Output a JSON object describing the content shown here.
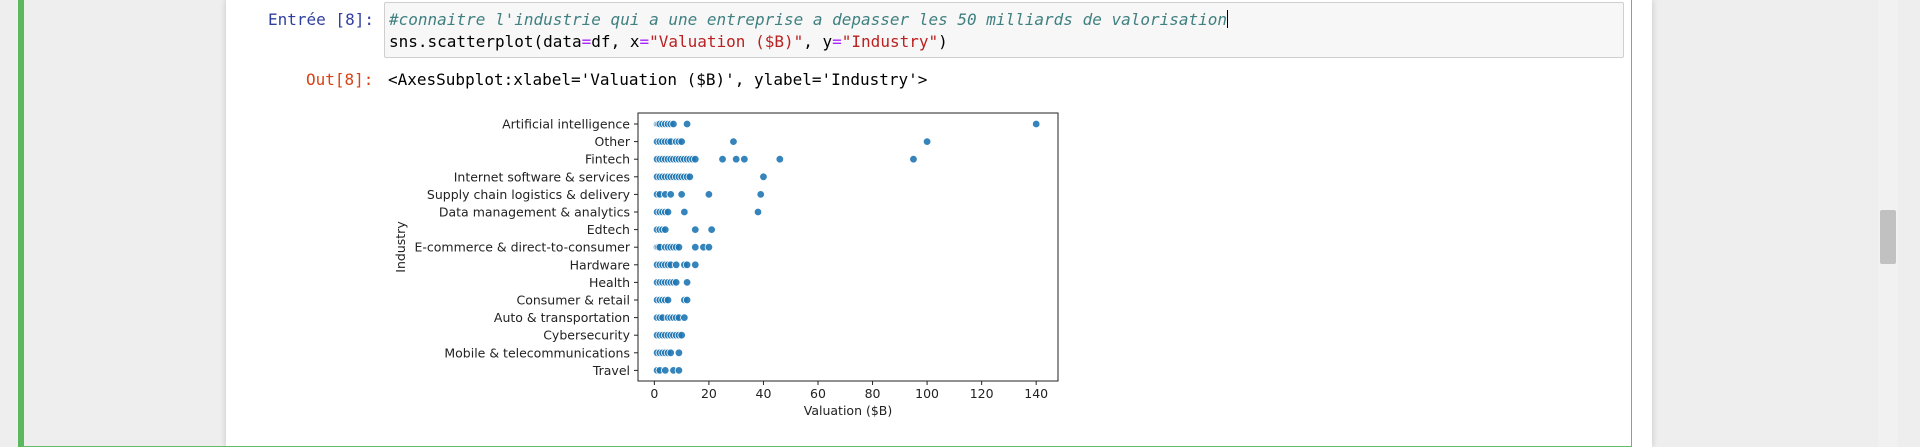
{
  "cell": {
    "in_prompt": "Entrée [8]:",
    "out_prompt": "Out[8]:",
    "code_line1_comment": "#connaitre l'industrie qui a une entreprise a depasser les 50 milliards de valorisation",
    "code_line2": {
      "p1": "sns.scatterplot(data",
      "eq1": "=",
      "p2": "df, x",
      "eq2": "=",
      "s1": "\"Valuation ($B)\"",
      "p3": ", y",
      "eq3": "=",
      "s2": "\"Industry\"",
      "p4": ")"
    },
    "output_text": "<AxesSubplot:xlabel='Valuation ($B)', ylabel='Industry'>"
  },
  "colors": {
    "point": "#1f77b4",
    "cell_border": "#5cb85c"
  },
  "chart_data": {
    "type": "scatter",
    "xlabel": "Valuation ($B)",
    "ylabel": "Industry",
    "xlim": [
      -6,
      148
    ],
    "xticks": [
      0,
      20,
      40,
      60,
      80,
      100,
      120,
      140
    ],
    "categories": [
      "Artificial intelligence",
      "Other",
      "Fintech",
      "Internet software & services",
      "Supply chain logistics & delivery",
      "Data management & analytics",
      "Edtech",
      "E-commerce & direct-to-consumer",
      "Hardware",
      "Health",
      "Consumer & retail",
      "Auto & transportation",
      "Cybersecurity",
      "Mobile & telecommunications",
      "Travel"
    ],
    "points": {
      "Artificial intelligence": [
        1,
        1.5,
        2,
        3,
        4,
        5,
        6,
        7,
        12,
        140
      ],
      "Other": [
        1,
        2,
        3,
        4,
        5,
        6,
        8,
        9,
        10,
        29,
        100
      ],
      "Fintech": [
        1,
        2,
        3,
        4,
        5,
        6,
        7,
        8,
        9,
        10,
        11,
        12,
        13,
        14,
        15,
        25,
        30,
        33,
        46,
        95
      ],
      "Internet software & services": [
        1,
        2,
        3,
        4,
        5,
        6,
        7,
        8,
        9,
        10,
        11,
        12,
        13,
        40
      ],
      "Supply chain logistics & delivery": [
        1,
        2,
        4,
        6,
        10,
        20,
        39
      ],
      "Data management & analytics": [
        1,
        2,
        3,
        4,
        5,
        11,
        38
      ],
      "Edtech": [
        1,
        2,
        3,
        4,
        15,
        21
      ],
      "E-commerce & direct-to-consumer": [
        1,
        1.5,
        2,
        4,
        5,
        6,
        7,
        8,
        9,
        15,
        18,
        20
      ],
      "Hardware": [
        1,
        2,
        3,
        4,
        5,
        6,
        8,
        11,
        12,
        15
      ],
      "Health": [
        1,
        2,
        3,
        4,
        5,
        6,
        7,
        8,
        12
      ],
      "Consumer & retail": [
        1,
        2,
        3,
        4,
        5,
        11,
        12
      ],
      "Auto & transportation": [
        1,
        2,
        3,
        5,
        6,
        7,
        8,
        9,
        11
      ],
      "Cybersecurity": [
        1,
        2,
        3,
        4,
        5,
        6,
        7,
        8,
        9,
        10
      ],
      "Mobile & telecommunications": [
        1,
        2,
        3,
        4,
        5,
        6,
        9
      ],
      "Travel": [
        1,
        2,
        4,
        7,
        9
      ]
    }
  }
}
